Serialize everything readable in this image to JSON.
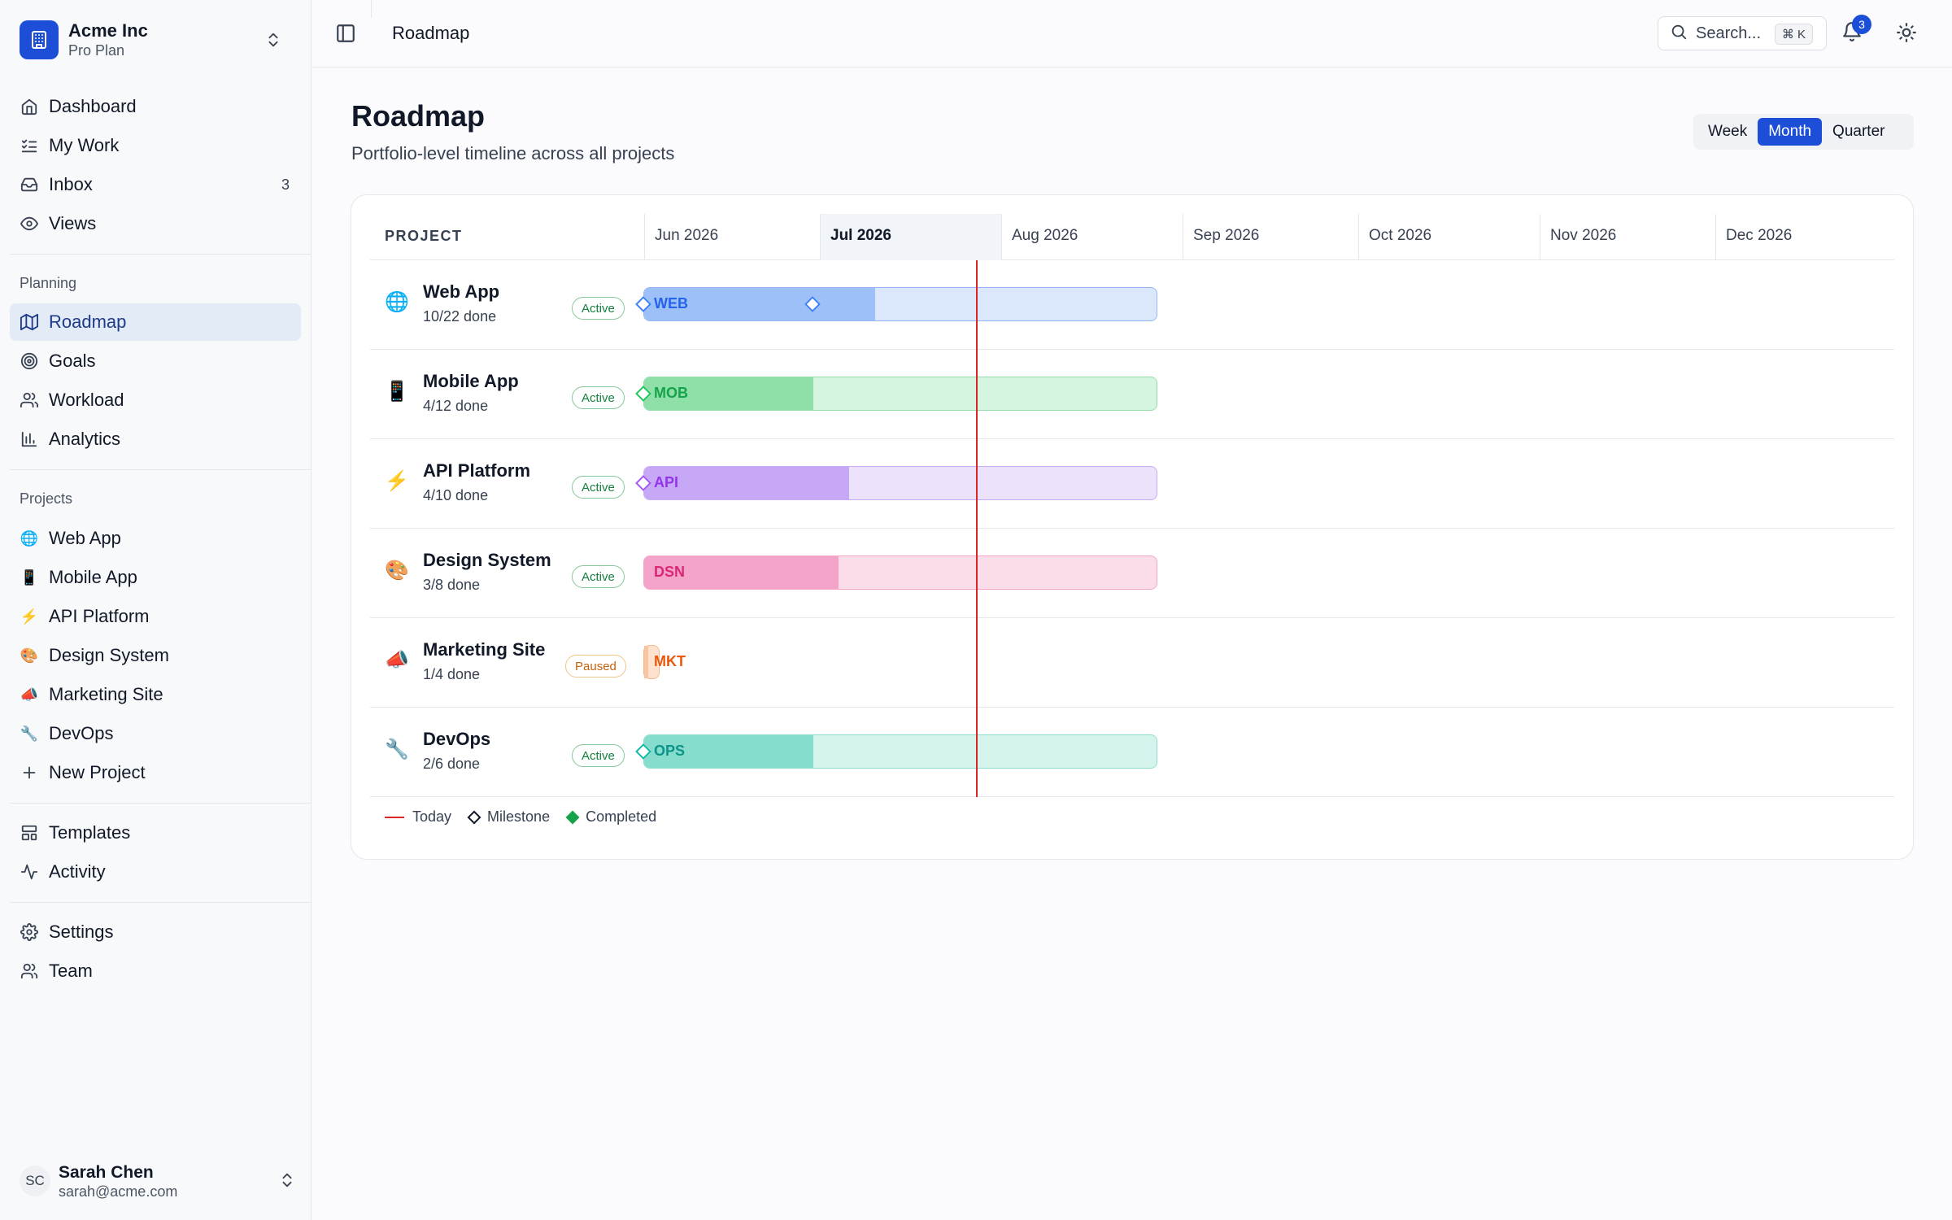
{
  "org": {
    "name": "Acme Inc",
    "plan": "Pro Plan"
  },
  "nav": {
    "main": [
      {
        "label": "Dashboard",
        "icon": "home-icon"
      },
      {
        "label": "My Work",
        "icon": "checklist-icon"
      },
      {
        "label": "Inbox",
        "icon": "inbox-icon",
        "count": "3"
      },
      {
        "label": "Views",
        "icon": "eye-icon"
      }
    ],
    "planning_title": "Planning",
    "planning": [
      {
        "label": "Roadmap",
        "icon": "map-icon",
        "active": true
      },
      {
        "label": "Goals",
        "icon": "target-icon"
      },
      {
        "label": "Workload",
        "icon": "users-icon"
      },
      {
        "label": "Analytics",
        "icon": "bar-chart-icon"
      }
    ],
    "projects_title": "Projects",
    "projects": [
      {
        "label": "Web App",
        "emoji": "🌐"
      },
      {
        "label": "Mobile App",
        "emoji": "📱"
      },
      {
        "label": "API Platform",
        "emoji": "⚡"
      },
      {
        "label": "Design System",
        "emoji": "🎨"
      },
      {
        "label": "Marketing Site",
        "emoji": "📣"
      },
      {
        "label": "DevOps",
        "emoji": "🔧"
      }
    ],
    "new_project": "New Project",
    "bottom": [
      {
        "label": "Templates",
        "icon": "template-icon"
      },
      {
        "label": "Activity",
        "icon": "activity-icon"
      }
    ],
    "footer": [
      {
        "label": "Settings",
        "icon": "gear-icon"
      },
      {
        "label": "Team",
        "icon": "team-icon"
      }
    ]
  },
  "user": {
    "initials": "SC",
    "name": "Sarah Chen",
    "email": "sarah@acme.com"
  },
  "topbar": {
    "title": "Roadmap",
    "search_placeholder": "Search...",
    "search_shortcut": "⌘ K",
    "notification_count": "3"
  },
  "page": {
    "title": "Roadmap",
    "subtitle": "Portfolio-level timeline across all projects"
  },
  "view_toggle": {
    "options": [
      "Week",
      "Month",
      "Quarter"
    ],
    "selected": "Month"
  },
  "timeline": {
    "project_header": "PROJECT",
    "months": [
      "Jun 2026",
      "Jul 2026",
      "Aug 2026",
      "Sep 2026",
      "Oct 2026",
      "Nov 2026",
      "Dec 2026"
    ],
    "current_month": "Jul 2026",
    "rows": [
      {
        "emoji": "🌐",
        "name": "Web App",
        "done": "10/22 done",
        "status": "Active",
        "code": "WEB",
        "color": "#3b82f6",
        "progress": 0.45
      },
      {
        "emoji": "📱",
        "name": "Mobile App",
        "done": "4/12 done",
        "status": "Active",
        "code": "MOB",
        "color": "#22c55e",
        "progress": 0.33
      },
      {
        "emoji": "⚡",
        "name": "API Platform",
        "done": "4/10 done",
        "status": "Active",
        "code": "API",
        "color": "#a855f7",
        "progress": 0.4
      },
      {
        "emoji": "🎨",
        "name": "Design System",
        "done": "3/8 done",
        "status": "Active",
        "code": "DSN",
        "color": "#ec4899",
        "progress": 0.38
      },
      {
        "emoji": "📣",
        "name": "Marketing Site",
        "done": "1/4 done",
        "status": "Paused",
        "code": "MKT",
        "color": "#f97316",
        "progress": 0.25
      },
      {
        "emoji": "🔧",
        "name": "DevOps",
        "done": "2/6 done",
        "status": "Active",
        "code": "OPS",
        "color": "#14b8a6",
        "progress": 0.33
      }
    ],
    "legend": {
      "today": "Today",
      "milestone": "Milestone",
      "completed": "Completed"
    }
  }
}
